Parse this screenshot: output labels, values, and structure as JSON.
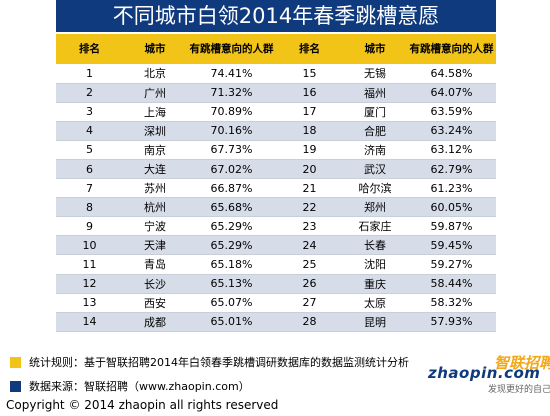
{
  "title": "不同城市白领2014年春季跳槽意愿",
  "table": {
    "headers": [
      "排名",
      "城市",
      "有跳槽意向的人群",
      "排名",
      "城市",
      "有跳槽意向的人群"
    ],
    "rows": [
      {
        "rank_a": "1",
        "city_a": "北京",
        "pct_a": "74.41%",
        "rank_b": "15",
        "city_b": "无锡",
        "pct_b": "64.58%"
      },
      {
        "rank_a": "2",
        "city_a": "广州",
        "pct_a": "71.32%",
        "rank_b": "16",
        "city_b": "福州",
        "pct_b": "64.07%"
      },
      {
        "rank_a": "3",
        "city_a": "上海",
        "pct_a": "70.89%",
        "rank_b": "17",
        "city_b": "厦门",
        "pct_b": "63.59%"
      },
      {
        "rank_a": "4",
        "city_a": "深圳",
        "pct_a": "70.16%",
        "rank_b": "18",
        "city_b": "合肥",
        "pct_b": "63.24%"
      },
      {
        "rank_a": "5",
        "city_a": "南京",
        "pct_a": "67.73%",
        "rank_b": "19",
        "city_b": "济南",
        "pct_b": "63.12%"
      },
      {
        "rank_a": "6",
        "city_a": "大连",
        "pct_a": "67.02%",
        "rank_b": "20",
        "city_b": "武汉",
        "pct_b": "62.79%"
      },
      {
        "rank_a": "7",
        "city_a": "苏州",
        "pct_a": "66.87%",
        "rank_b": "21",
        "city_b": "哈尔滨",
        "pct_b": "61.23%"
      },
      {
        "rank_a": "8",
        "city_a": "杭州",
        "pct_a": "65.68%",
        "rank_b": "22",
        "city_b": "郑州",
        "pct_b": "60.05%"
      },
      {
        "rank_a": "9",
        "city_a": "宁波",
        "pct_a": "65.29%",
        "rank_b": "23",
        "city_b": "石家庄",
        "pct_b": "59.87%"
      },
      {
        "rank_a": "10",
        "city_a": "天津",
        "pct_a": "65.29%",
        "rank_b": "24",
        "city_b": "长春",
        "pct_b": "59.45%"
      },
      {
        "rank_a": "11",
        "city_a": "青岛",
        "pct_a": "65.18%",
        "rank_b": "25",
        "city_b": "沈阳",
        "pct_b": "59.27%"
      },
      {
        "rank_a": "12",
        "city_a": "长沙",
        "pct_a": "65.13%",
        "rank_b": "26",
        "city_b": "重庆",
        "pct_b": "58.44%"
      },
      {
        "rank_a": "13",
        "city_a": "西安",
        "pct_a": "65.07%",
        "rank_b": "27",
        "city_b": "太原",
        "pct_b": "58.32%"
      },
      {
        "rank_a": "14",
        "city_a": "成都",
        "pct_a": "65.01%",
        "rank_b": "28",
        "city_b": "昆明",
        "pct_b": "57.93%"
      }
    ]
  },
  "notes": [
    {
      "color": "#f2c418",
      "text": "统计规则：基于智联招聘2014年白领春季跳槽调研数据库的数据监测统计分析"
    },
    {
      "color": "#0f3a7d",
      "text": "数据来源：智联招聘（www.zhaopin.com）"
    }
  ],
  "logo": {
    "name": "智联招聘",
    "url": "zhaopin.com",
    "tagline": "发现更好的自己"
  },
  "copyright": "Copyright  ©  2014 zhaopin all rights reserved",
  "colors": {
    "header_blue": "#0f3a7d",
    "header_yellow": "#f2c418",
    "row_stripe": "#d6dde8"
  }
}
